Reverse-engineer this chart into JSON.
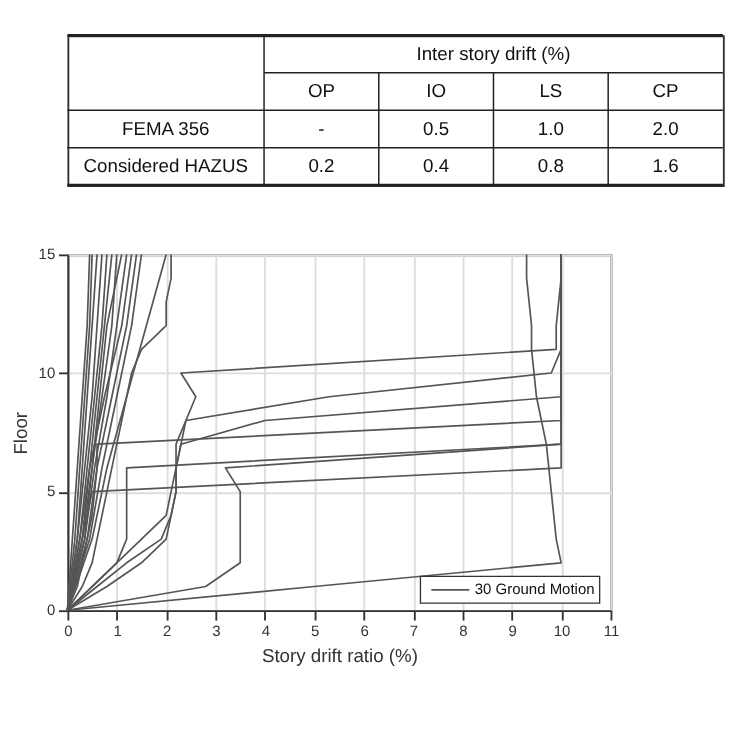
{
  "chart_data": [
    {
      "type": "other",
      "title": "Inter story drift (%)",
      "categories": [
        "OP",
        "IO",
        "LS",
        "CP"
      ],
      "y_categories": [
        "FEMA 356",
        "Considered HAZUS"
      ],
      "cell_labels": [
        [
          "-",
          "0.5",
          "1.0",
          "2.0"
        ],
        [
          "0.2",
          "0.4",
          "0.8",
          "1.6"
        ]
      ]
    },
    {
      "type": "line",
      "xlabel": "Story drift ratio (%)",
      "ylabel": "Floor",
      "xlim": [
        0,
        11
      ],
      "ylim": [
        0,
        15
      ],
      "xticks": [
        0,
        1,
        2,
        3,
        4,
        5,
        6,
        7,
        8,
        9,
        10,
        11
      ],
      "yticks": [
        0,
        5,
        10,
        15
      ],
      "grid": true,
      "legend": "bottom right",
      "series": [
        {
          "name": "30 Ground Motion",
          "color": "#555555",
          "x": [
            0,
            2.8,
            3.5,
            3.5,
            3.5,
            3.5,
            3.2,
            10,
            10,
            10,
            10,
            10,
            10,
            10,
            10,
            10
          ],
          "values": [
            0,
            1,
            2,
            3,
            4,
            5,
            6,
            7,
            8,
            9,
            10,
            11,
            12,
            13,
            14,
            15
          ]
        },
        {
          "color": "#555555",
          "x": [
            0,
            5,
            10,
            9.9,
            9.85,
            9.8,
            9.75,
            9.7,
            9.6,
            9.5,
            9.45,
            9.4,
            9.4,
            9.35,
            9.3,
            9.3
          ],
          "values": [
            0,
            1,
            2,
            3,
            4,
            5,
            6,
            7,
            8,
            9,
            10,
            11,
            12,
            13,
            14,
            15
          ]
        },
        {
          "color": "#555555",
          "x": [
            0,
            0.8,
            1.5,
            2,
            2.1,
            2.2,
            2.2,
            2.3,
            4,
            10,
            10,
            10,
            10,
            10,
            10,
            10
          ],
          "values": [
            0,
            1,
            2,
            3,
            4,
            5,
            6,
            7,
            8,
            9,
            10,
            11,
            12,
            13,
            14,
            15
          ]
        },
        {
          "color": "#555555",
          "x": [
            0,
            0.1,
            0.2,
            0.3,
            0.4,
            0.5,
            10,
            10,
            10,
            10,
            10,
            10,
            10,
            10,
            10,
            10
          ],
          "values": [
            0,
            1,
            2,
            3,
            4,
            5,
            6,
            7,
            8,
            9,
            10,
            11,
            12,
            13,
            14,
            15
          ]
        },
        {
          "color": "#555555",
          "x": [
            0,
            0.5,
            1,
            1.2,
            1.2,
            1.2,
            1.2,
            10,
            10,
            10,
            10,
            10,
            10,
            10,
            10,
            10
          ],
          "values": [
            0,
            1,
            2,
            3,
            4,
            5,
            6,
            7,
            8,
            9,
            10,
            11,
            12,
            13,
            14,
            15
          ]
        },
        {
          "color": "#555555",
          "x": [
            0,
            0.2,
            0.3,
            0.4,
            0.5,
            0.55,
            0.6,
            0.6,
            10,
            10,
            10,
            10,
            10,
            10,
            10,
            10
          ],
          "values": [
            0,
            1,
            2,
            3,
            4,
            5,
            6,
            7,
            8,
            9,
            10,
            11,
            12,
            13,
            14,
            15
          ]
        },
        {
          "color": "#555555",
          "x": [
            0,
            0.6,
            1.2,
            1.9,
            2.1,
            2.2,
            2.2,
            2.3,
            2.4,
            2.6,
            2.3,
            9.9,
            9.9,
            9.95,
            10,
            10
          ],
          "values": [
            0,
            1,
            2,
            3,
            4,
            5,
            6,
            7,
            8,
            9,
            10,
            11,
            12,
            13,
            14,
            15
          ]
        },
        {
          "color": "#555555",
          "x": [
            0,
            0.5,
            1,
            1.5,
            2,
            2.1,
            2.2,
            2.2,
            2.4,
            5.3,
            9.8,
            10,
            10,
            10,
            10,
            10
          ],
          "values": [
            0,
            1,
            2,
            3,
            4,
            5,
            6,
            7,
            8,
            9,
            10,
            11,
            12,
            13,
            14,
            15
          ]
        },
        {
          "color": "#555555",
          "x": [
            0,
            0.3,
            0.5,
            0.6,
            0.7,
            0.8,
            0.9,
            1,
            1.1,
            1.2,
            1.3,
            1.5,
            2,
            2,
            2.1,
            2.1
          ],
          "values": [
            0,
            1,
            2,
            3,
            4,
            5,
            6,
            7,
            8,
            9,
            10,
            11,
            12,
            13,
            14,
            15
          ]
        },
        {
          "color": "#555555",
          "x": [
            0,
            0.2,
            0.3,
            0.4,
            0.5,
            0.6
          ],
          "values": [
            0,
            3,
            6,
            9,
            12,
            15
          ]
        },
        {
          "color": "#555555",
          "x": [
            0,
            0.25,
            0.4,
            0.55,
            0.7,
            0.8
          ],
          "values": [
            0,
            3,
            6,
            9,
            12,
            15
          ]
        },
        {
          "color": "#555555",
          "x": [
            0,
            0.3,
            0.5,
            0.7,
            0.9,
            1.0
          ],
          "values": [
            0,
            3,
            6,
            9,
            12,
            15
          ]
        },
        {
          "color": "#555555",
          "x": [
            0,
            0.35,
            0.55,
            0.8,
            1.0,
            1.2
          ],
          "values": [
            0,
            3,
            6,
            9,
            12,
            15
          ]
        },
        {
          "color": "#555555",
          "x": [
            0,
            0.4,
            0.6,
            0.9,
            1.2,
            1.4
          ],
          "values": [
            0,
            3,
            6,
            9,
            12,
            15
          ]
        },
        {
          "color": "#555555",
          "x": [
            0,
            0.15,
            0.25,
            0.35,
            0.45,
            0.5
          ],
          "values": [
            0,
            3,
            6,
            9,
            12,
            15
          ]
        },
        {
          "color": "#555555",
          "x": [
            0,
            0.45,
            0.7,
            1.0,
            1.3,
            1.5
          ],
          "values": [
            0,
            3,
            6,
            9,
            12,
            15
          ]
        },
        {
          "color": "#555555",
          "x": [
            0,
            0.2,
            0.35,
            0.5,
            0.6,
            0.7
          ],
          "values": [
            0,
            3,
            6,
            9,
            12,
            15
          ]
        },
        {
          "color": "#555555",
          "x": [
            0,
            0.3,
            0.45,
            0.6,
            0.75,
            0.9
          ],
          "values": [
            0,
            3,
            6,
            9,
            12,
            15
          ]
        },
        {
          "color": "#555555",
          "x": [
            0,
            0.5,
            0.8,
            1.2,
            1.6,
            2.0
          ],
          "values": [
            0,
            3,
            6,
            9,
            12,
            15
          ]
        },
        {
          "color": "#555555",
          "x": [
            0,
            0.1,
            0.2,
            0.3,
            0.4,
            0.45
          ],
          "values": [
            0,
            3,
            6,
            9,
            12,
            15
          ]
        },
        {
          "color": "#555555",
          "x": [
            0,
            0.35,
            0.5,
            0.65,
            0.8,
            1.1
          ],
          "values": [
            0,
            3,
            6,
            9,
            12,
            15
          ]
        },
        {
          "color": "#555555",
          "x": [
            0,
            0.25,
            0.45,
            0.75,
            1.1,
            1.3
          ],
          "values": [
            0,
            3,
            6,
            9,
            12,
            15
          ]
        }
      ]
    }
  ]
}
